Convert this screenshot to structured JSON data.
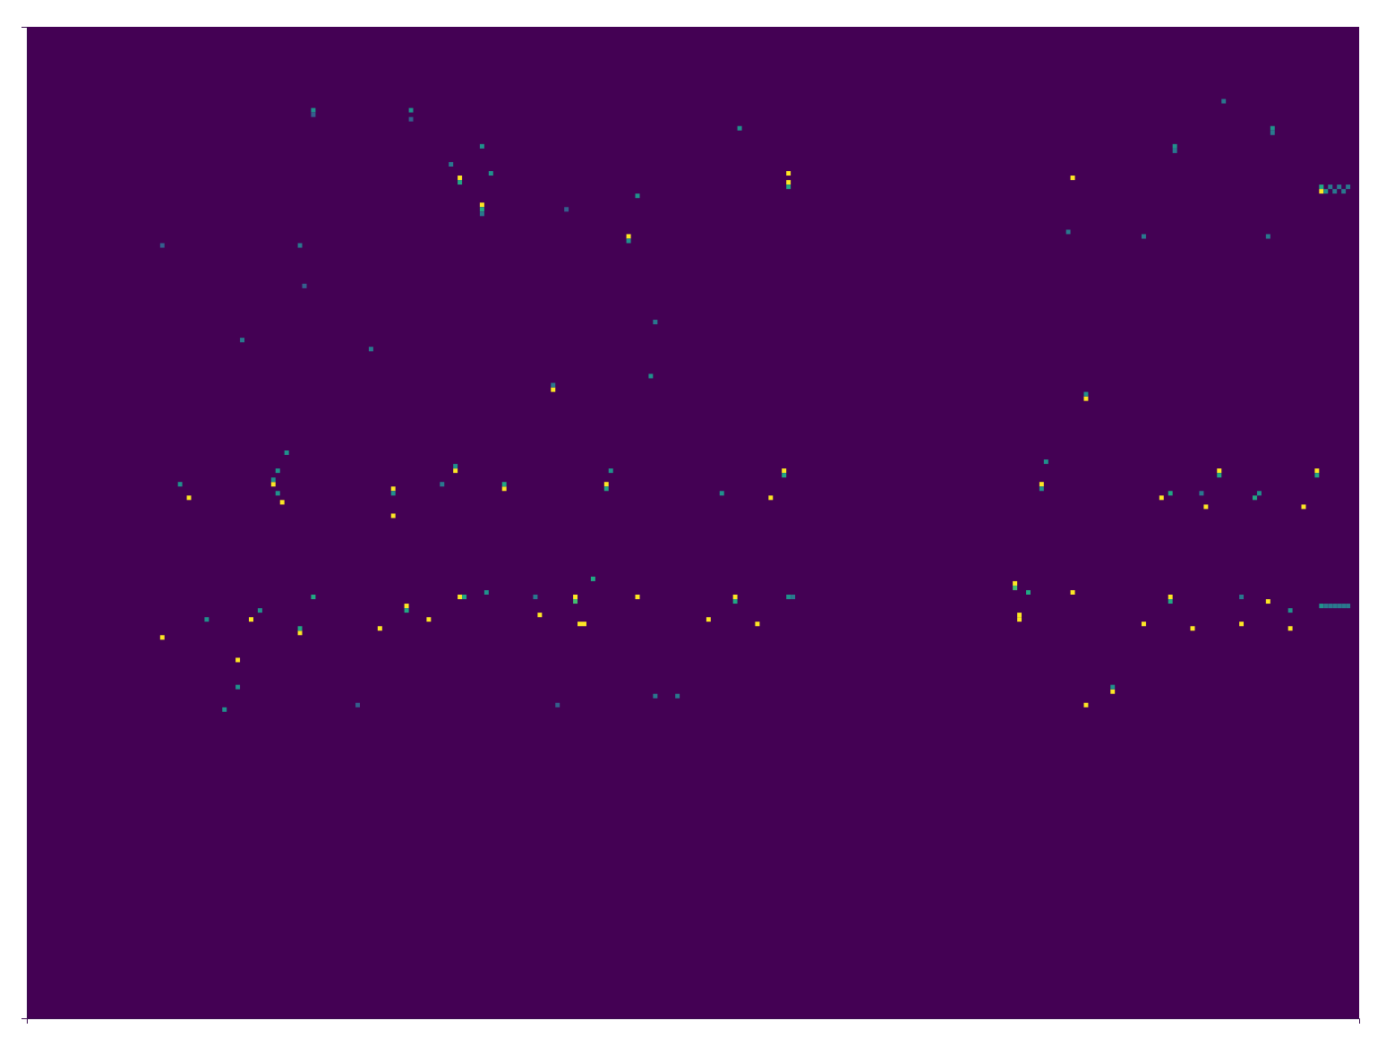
{
  "chart_data": {
    "type": "heatmap",
    "tick_labels": false,
    "xlim": [
      0,
      300
    ],
    "ylim": [
      0,
      220
    ],
    "xticks": [],
    "yticks": [],
    "zlim": [
      0,
      1
    ],
    "cells": [
      [
        97,
        33,
        1
      ],
      [
        97,
        34,
        0.6
      ],
      [
        102,
        39,
        1
      ],
      [
        102,
        40,
        0.6
      ],
      [
        102,
        41,
        0.4
      ],
      [
        171,
        32,
        1
      ],
      [
        171,
        34,
        1
      ],
      [
        171,
        35,
        0.6
      ],
      [
        135,
        46,
        1
      ],
      [
        135,
        47,
        0.5
      ],
      [
        235,
        33,
        1
      ],
      [
        291,
        35,
        0.6
      ],
      [
        291,
        36,
        1
      ],
      [
        292,
        36,
        0.5
      ],
      [
        293,
        35,
        0.4
      ],
      [
        294,
        36,
        0.4
      ],
      [
        295,
        35,
        0.4
      ],
      [
        296,
        36,
        0.4
      ],
      [
        297,
        35,
        0.4
      ],
      [
        118,
        80,
        1
      ],
      [
        118,
        79,
        0.4
      ],
      [
        238,
        82,
        1
      ],
      [
        238,
        81,
        0.5
      ],
      [
        64,
        18,
        0.5
      ],
      [
        64,
        19,
        0.3
      ],
      [
        86,
        18,
        0.5
      ],
      [
        86,
        20,
        0.3
      ],
      [
        102,
        26,
        0.5
      ],
      [
        160,
        22,
        0.5
      ],
      [
        258,
        26,
        0.5
      ],
      [
        258,
        27,
        0.4
      ],
      [
        280,
        22,
        0.5
      ],
      [
        280,
        23,
        0.4
      ],
      [
        269,
        16,
        0.4
      ],
      [
        137,
        37,
        0.5
      ],
      [
        251,
        46,
        0.4
      ],
      [
        61,
        48,
        0.4
      ],
      [
        48,
        69,
        0.4
      ],
      [
        77,
        71,
        0.4
      ],
      [
        140,
        77,
        0.5
      ],
      [
        234,
        45,
        0.4
      ],
      [
        279,
        46,
        0.4
      ],
      [
        30,
        48,
        0.3
      ],
      [
        95,
        30,
        0.4
      ],
      [
        104,
        32,
        0.5
      ],
      [
        62,
        57,
        0.3
      ],
      [
        121,
        40,
        0.3
      ],
      [
        141,
        65,
        0.4
      ],
      [
        36,
        104,
        1
      ],
      [
        55,
        101,
        1
      ],
      [
        55,
        100,
        0.5
      ],
      [
        57,
        105,
        1
      ],
      [
        56,
        103,
        0.5
      ],
      [
        82,
        102,
        1
      ],
      [
        82,
        108,
        1
      ],
      [
        82,
        103,
        0.5
      ],
      [
        96,
        98,
        1
      ],
      [
        96,
        97,
        0.5
      ],
      [
        107,
        102,
        1
      ],
      [
        107,
        101,
        0.6
      ],
      [
        130,
        101,
        1
      ],
      [
        130,
        102,
        0.6
      ],
      [
        156,
        103,
        0.5
      ],
      [
        167,
        104,
        1
      ],
      [
        170,
        98,
        1
      ],
      [
        170,
        99,
        0.6
      ],
      [
        228,
        101,
        1
      ],
      [
        228,
        102,
        0.5
      ],
      [
        255,
        104,
        1
      ],
      [
        265,
        106,
        1
      ],
      [
        268,
        98,
        1
      ],
      [
        268,
        99,
        0.6
      ],
      [
        276,
        104,
        0.6
      ],
      [
        287,
        106,
        1
      ],
      [
        290,
        98,
        1
      ],
      [
        290,
        99,
        0.6
      ],
      [
        34,
        101,
        0.5
      ],
      [
        58,
        94,
        0.5
      ],
      [
        93,
        101,
        0.4
      ],
      [
        131,
        98,
        0.5
      ],
      [
        229,
        96,
        0.5
      ],
      [
        257,
        103,
        0.6
      ],
      [
        277,
        103,
        0.5
      ],
      [
        264,
        103,
        0.4
      ],
      [
        56,
        98,
        0.5
      ],
      [
        30,
        135,
        1
      ],
      [
        50,
        131,
        1
      ],
      [
        61,
        134,
        1
      ],
      [
        61,
        133,
        0.6
      ],
      [
        79,
        133,
        1
      ],
      [
        85,
        128,
        1
      ],
      [
        85,
        129,
        0.6
      ],
      [
        90,
        131,
        1
      ],
      [
        97,
        126,
        1
      ],
      [
        115,
        130,
        1
      ],
      [
        123,
        126,
        1
      ],
      [
        123,
        127,
        0.7
      ],
      [
        124,
        132,
        1
      ],
      [
        125,
        132,
        1
      ],
      [
        137,
        126,
        1
      ],
      [
        153,
        131,
        1
      ],
      [
        159,
        126,
        1
      ],
      [
        159,
        127,
        0.6
      ],
      [
        164,
        132,
        1
      ],
      [
        222,
        123,
        1
      ],
      [
        222,
        124,
        0.7
      ],
      [
        223,
        130,
        1
      ],
      [
        223,
        131,
        1
      ],
      [
        225,
        125,
        0.6
      ],
      [
        235,
        125,
        1
      ],
      [
        251,
        132,
        1
      ],
      [
        257,
        126,
        1
      ],
      [
        257,
        127,
        0.6
      ],
      [
        262,
        133,
        1
      ],
      [
        273,
        132,
        1
      ],
      [
        279,
        127,
        1
      ],
      [
        284,
        133,
        1
      ],
      [
        238,
        150,
        1
      ],
      [
        244,
        147,
        1
      ],
      [
        47,
        140,
        1
      ],
      [
        44,
        151,
        0.5
      ],
      [
        127,
        122,
        0.6
      ],
      [
        171,
        126,
        0.5
      ],
      [
        172,
        126,
        0.4
      ],
      [
        291,
        128,
        0.5
      ],
      [
        292,
        128,
        0.4
      ],
      [
        293,
        128,
        0.4
      ],
      [
        294,
        128,
        0.4
      ],
      [
        295,
        128,
        0.4
      ],
      [
        296,
        128,
        0.4
      ],
      [
        297,
        128,
        0.4
      ],
      [
        40,
        131,
        0.5
      ],
      [
        64,
        126,
        0.6
      ],
      [
        74,
        150,
        0.3
      ],
      [
        119,
        150,
        0.3
      ],
      [
        141,
        148,
        0.4
      ],
      [
        146,
        148,
        0.4
      ],
      [
        244,
        146,
        0.5
      ],
      [
        273,
        126,
        0.4
      ],
      [
        284,
        129,
        0.5
      ],
      [
        52,
        129,
        0.5
      ],
      [
        103,
        125,
        0.5
      ],
      [
        114,
        126,
        0.4
      ],
      [
        47,
        146,
        0.5
      ],
      [
        98,
        126,
        0.6
      ]
    ]
  }
}
